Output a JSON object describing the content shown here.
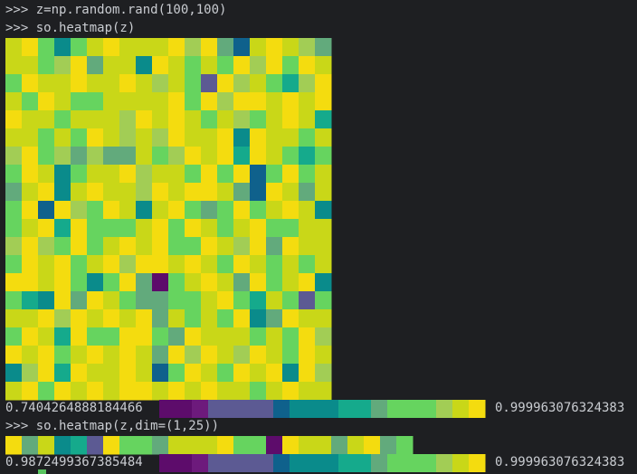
{
  "terminal": {
    "line1": ">>> z=np.random.rand(100,100)",
    "line2": ">>> so.heatmap(z)",
    "line3": ">>> so.heatmap(z,dim=(1,25))"
  },
  "palette": [
    "#5d0c6b",
    "#6d1a7c",
    "#5c5a93",
    "#0f618c",
    "#0a8b8b",
    "#15aa8c",
    "#62aa7c",
    "#66d45f",
    "#a2cd55",
    "#c9d718",
    "#f4dc0f"
  ],
  "heatmap1": {
    "rows": [
      "9A7479A999A8A639A986",
      "9978A6994A9797A8A7A9",
      "7A99A99A98972A89758A",
      "97A9779999A7A8AA9A9A",
      "A9979998A9A979879A95",
      "99797A9898A99A4A9979",
      "8A786866978A9A5A9757",
      "7A94799A8997A7A37A79",
      "69A49A998A9AA963A969",
      "7A3A87A949A767A79A94",
      "79A5A7779A7A979A7799",
      "8A87A79A9A77A98A6A99",
      "7A9A79A8AA9A97A97979",
      "AA9A747A6079A96A79A4",
      "754A6A9766779A759727",
      "99A8A9A9A69797A46A99",
      "7A95A77AA76A999797A8",
      "A9A79A9A96A8A98A97A9",
      "48A5A99A937A97A9A4A8",
      "9A7A9A9AA9A9A9979A99"
    ],
    "colorbar": "0012222344455677789A",
    "min_label": "0.7404264888184466",
    "max_label": "0.999963076324383"
  },
  "heatmap2": {
    "rows": [
      "A69452A776999A770A9969A67"
    ],
    "colorbar": "0012222344455677789A",
    "min_label": "0.9872499367385484",
    "max_label": "0.999963076324383"
  }
}
